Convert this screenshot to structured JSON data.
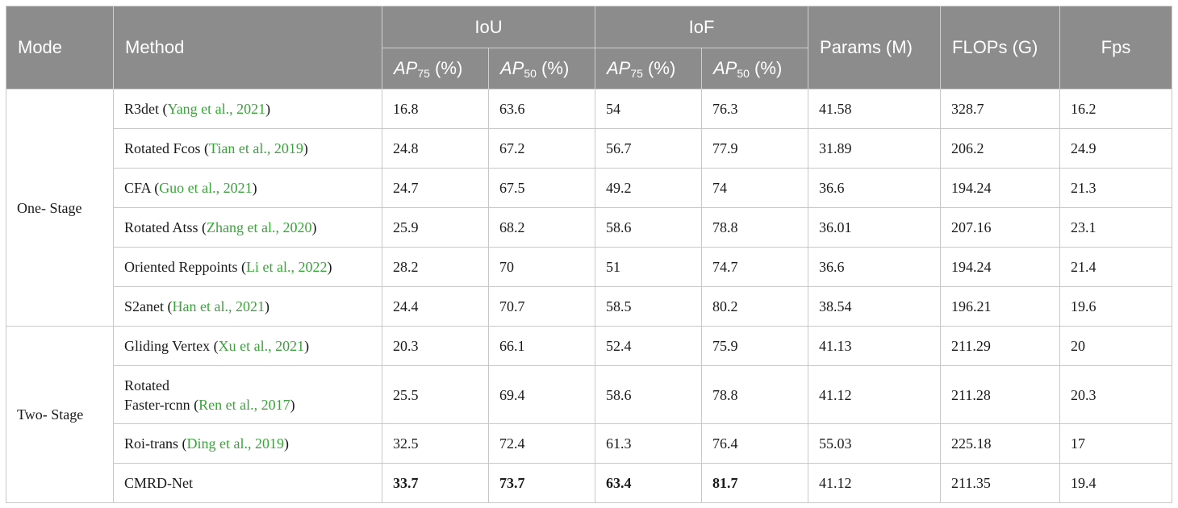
{
  "header": {
    "mode": "Mode",
    "method": "Method",
    "iou": "IoU",
    "iof": "IoF",
    "params": "Params (M)",
    "flops": "FLOPs (G)",
    "fps": "Fps",
    "ap": "AP",
    "sub75": "75",
    "sub50": "50",
    "pct": " (%)"
  },
  "groups": [
    {
      "mode": "One- Stage",
      "rows": [
        {
          "name": "R3det ",
          "cite_open": "(",
          "cite": "Yang et al., 2021",
          "cite_close": ")",
          "iou75": "16.8",
          "iou50": "63.6",
          "iof75": "54",
          "iof50": "76.3",
          "params": "41.58",
          "flops": "328.7",
          "fps": "16.2"
        },
        {
          "name": "Rotated Fcos ",
          "cite_open": "(",
          "cite": "Tian et al., 2019",
          "cite_close": ")",
          "iou75": "24.8",
          "iou50": "67.2",
          "iof75": "56.7",
          "iof50": "77.9",
          "params": "31.89",
          "flops": "206.2",
          "fps": "24.9"
        },
        {
          "name": "CFA ",
          "cite_open": "(",
          "cite": "Guo et al., 2021",
          "cite_close": ")",
          "iou75": "24.7",
          "iou50": "67.5",
          "iof75": "49.2",
          "iof50": "74",
          "params": "36.6",
          "flops": "194.24",
          "fps": "21.3"
        },
        {
          "name": "Rotated Atss ",
          "cite_open": "(",
          "cite": "Zhang et al., 2020",
          "cite_close": ")",
          "iou75": "25.9",
          "iou50": "68.2",
          "iof75": "58.6",
          "iof50": "78.8",
          "params": "36.01",
          "flops": "207.16",
          "fps": "23.1"
        },
        {
          "name": "Oriented Reppoints ",
          "cite_open": "(",
          "cite": "Li et al., 2022",
          "cite_close": ")",
          "iou75": "28.2",
          "iou50": "70",
          "iof75": "51",
          "iof50": "74.7",
          "params": "36.6",
          "flops": "194.24",
          "fps": "21.4"
        },
        {
          "name": "S2anet ",
          "cite_open": "(",
          "cite": "Han et al., 2021",
          "cite_close": ")",
          "iou75": "24.4",
          "iou50": "70.7",
          "iof75": "58.5",
          "iof50": "80.2",
          "params": "38.54",
          "flops": "196.21",
          "fps": "19.6"
        }
      ]
    },
    {
      "mode": "Two- Stage",
      "rows": [
        {
          "name": "Gliding Vertex ",
          "cite_open": "(",
          "cite": "Xu et al., 2021",
          "cite_close": ")",
          "iou75": "20.3",
          "iou50": "66.1",
          "iof75": "52.4",
          "iof50": "75.9",
          "params": "41.13",
          "flops": "211.29",
          "fps": "20"
        },
        {
          "name_line1": "Rotated",
          "name": "Faster-rcnn ",
          "cite_open": "(",
          "cite": "Ren et al., 2017",
          "cite_close": ")",
          "iou75": "25.5",
          "iou50": "69.4",
          "iof75": "58.6",
          "iof50": "78.8",
          "params": "41.12",
          "flops": "211.28",
          "fps": "20.3"
        },
        {
          "name": "Roi-trans ",
          "cite_open": "(",
          "cite": "Ding et al., 2019",
          "cite_close": ")",
          "iou75": "32.5",
          "iou50": "72.4",
          "iof75": "61.3",
          "iof50": "76.4",
          "params": "55.03",
          "flops": "225.18",
          "fps": "17"
        },
        {
          "name": "CMRD-Net",
          "cite_open": "",
          "cite": "",
          "cite_close": "",
          "iou75": "33.7",
          "iou50": "73.7",
          "iof75": "63.4",
          "iof50": "81.7",
          "params": "41.12",
          "flops": "211.35",
          "fps": "19.4"
        }
      ]
    }
  ]
}
